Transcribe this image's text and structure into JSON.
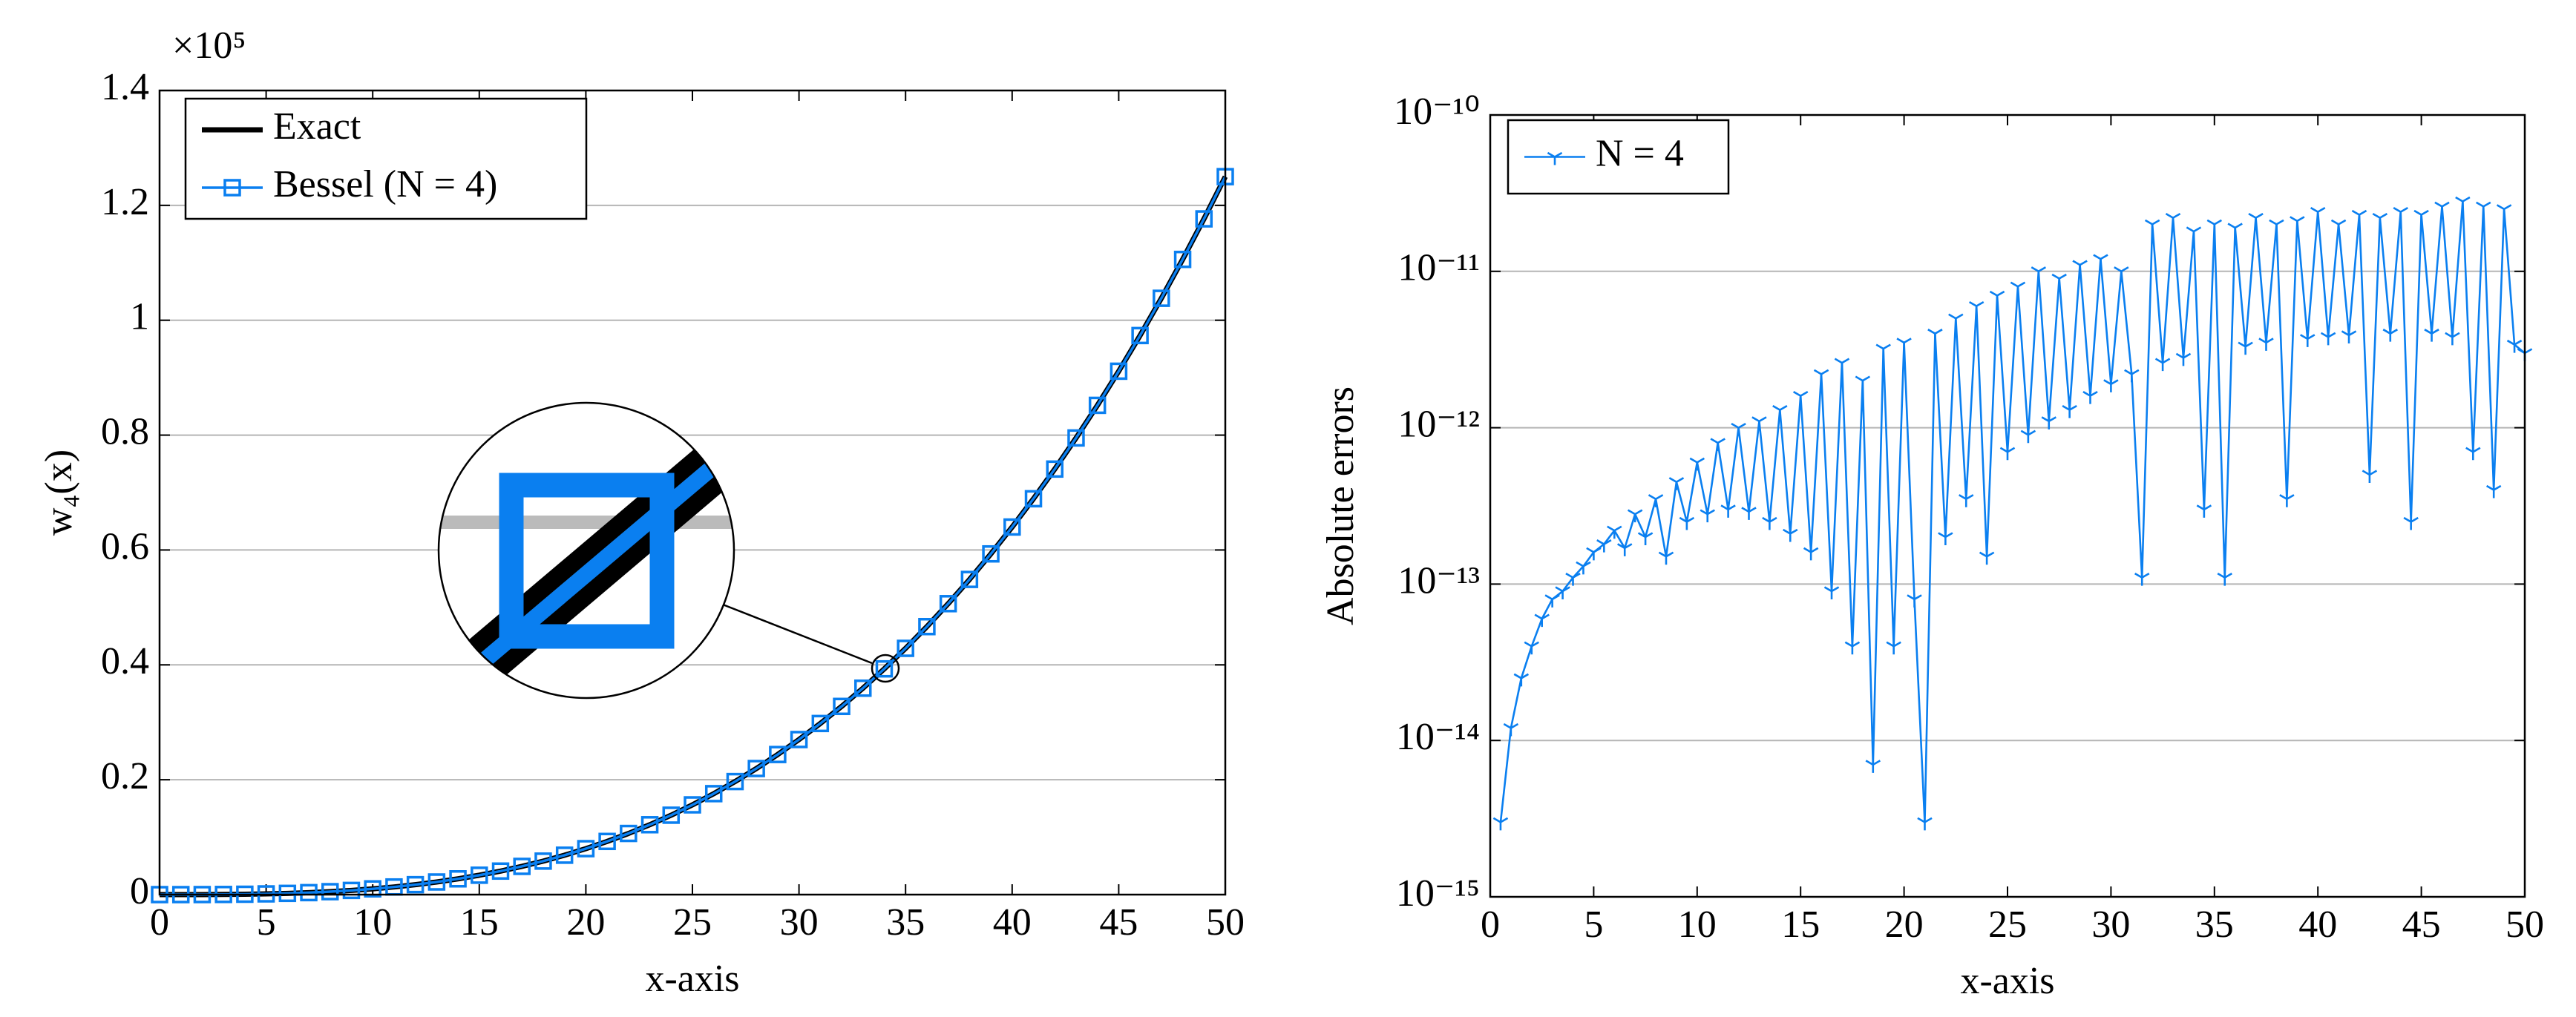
{
  "chart_data": [
    {
      "type": "line",
      "x": [
        0,
        1,
        2,
        3,
        4,
        5,
        6,
        7,
        8,
        9,
        10,
        11,
        12,
        13,
        14,
        15,
        16,
        17,
        18,
        19,
        20,
        21,
        22,
        23,
        24,
        25,
        26,
        27,
        28,
        29,
        30,
        31,
        32,
        33,
        34,
        35,
        36,
        37,
        38,
        39,
        40,
        41,
        42,
        43,
        44,
        45,
        46,
        47,
        48,
        49,
        50
      ],
      "series": [
        {
          "name": "Exact",
          "color": "#000000",
          "marker": "none",
          "values": [
            0,
            1e-05,
            8e-05,
            0.00027,
            0.00064,
            0.00125,
            0.00216,
            0.00343,
            0.00512,
            0.00729,
            0.01,
            0.01331,
            0.01728,
            0.02197,
            0.02744,
            0.03375,
            0.04096,
            0.04913,
            0.05832,
            0.06859,
            0.08,
            0.09261,
            0.10648,
            0.12167,
            0.13824,
            0.15625,
            0.17576,
            0.19683,
            0.21952,
            0.24389,
            0.27,
            0.29791,
            0.32768,
            0.35937,
            0.39304,
            0.42875,
            0.46656,
            0.50653,
            0.54872,
            0.59319,
            0.64,
            0.68921,
            0.74088,
            0.79507,
            0.85184,
            0.91125,
            0.97336,
            1.03823,
            1.10592,
            1.17649,
            1.25
          ]
        },
        {
          "name": "Bessel (N = 4)",
          "color": "#0a7ff0",
          "marker": "square",
          "values": [
            0,
            1e-05,
            8e-05,
            0.00027,
            0.00064,
            0.00125,
            0.00216,
            0.00343,
            0.00512,
            0.00729,
            0.01,
            0.01331,
            0.01728,
            0.02197,
            0.02744,
            0.03375,
            0.04096,
            0.04913,
            0.05832,
            0.06859,
            0.08,
            0.09261,
            0.10648,
            0.12167,
            0.13824,
            0.15625,
            0.17576,
            0.19683,
            0.21952,
            0.24389,
            0.27,
            0.29791,
            0.32768,
            0.35937,
            0.39304,
            0.42875,
            0.46656,
            0.50653,
            0.54872,
            0.59319,
            0.64,
            0.68921,
            0.74088,
            0.79507,
            0.85184,
            0.91125,
            0.97336,
            1.03823,
            1.10592,
            1.17649,
            1.25
          ]
        }
      ],
      "xlim": [
        0,
        50
      ],
      "ylim": [
        0,
        1.4
      ],
      "xticks": [
        0,
        5,
        10,
        15,
        20,
        25,
        30,
        35,
        40,
        45,
        50
      ],
      "yticks": [
        0,
        0.2,
        0.4,
        0.6,
        0.8,
        1,
        1.2,
        1.4
      ],
      "xlabel": "x-axis",
      "ylabel": "w₄(x)",
      "y_multiplier": "×10⁵",
      "grid": true,
      "log_y": false,
      "legend": "upper left"
    },
    {
      "type": "line",
      "x": [
        0.5,
        1,
        1.5,
        2,
        2.5,
        3,
        3.5,
        4,
        4.5,
        5,
        5.5,
        6,
        6.5,
        7,
        7.5,
        8,
        8.5,
        9,
        9.5,
        10,
        10.5,
        11,
        11.5,
        12,
        12.5,
        13,
        13.5,
        14,
        14.5,
        15,
        15.5,
        16,
        16.5,
        17,
        17.5,
        18,
        18.5,
        19,
        19.5,
        20,
        20.5,
        21,
        21.5,
        22,
        22.5,
        23,
        23.5,
        24,
        24.5,
        25,
        25.5,
        26,
        26.5,
        27,
        27.5,
        28,
        28.5,
        29,
        29.5,
        30,
        30.5,
        31,
        31.5,
        32,
        32.5,
        33,
        33.5,
        34,
        34.5,
        35,
        35.5,
        36,
        36.5,
        37,
        37.5,
        38,
        38.5,
        39,
        39.5,
        40,
        40.5,
        41,
        41.5,
        42,
        42.5,
        43,
        43.5,
        44,
        44.5,
        45,
        45.5,
        46,
        46.5,
        47,
        47.5,
        48,
        48.5,
        49,
        49.5,
        50
      ],
      "series": [
        {
          "name": "N = 4",
          "color": "#0a7ff0",
          "marker": "tri",
          "values": [
            3e-15,
            1.2e-14,
            2.5e-14,
            4e-14,
            6e-14,
            8e-14,
            9e-14,
            1.1e-13,
            1.3e-13,
            1.6e-13,
            1.8e-13,
            2.2e-13,
            1.7e-13,
            2.8e-13,
            2e-13,
            3.5e-13,
            1.5e-13,
            4.5e-13,
            2.5e-13,
            6e-13,
            2.8e-13,
            8e-13,
            3e-13,
            1e-12,
            2.9e-13,
            1.1e-12,
            2.5e-13,
            1.3e-12,
            2.1e-13,
            1.6e-12,
            1.6e-13,
            2.2e-12,
            9e-14,
            2.6e-12,
            4e-14,
            2e-12,
            7e-15,
            3.2e-12,
            4e-14,
            3.5e-12,
            8e-14,
            3e-15,
            4e-12,
            2e-13,
            5e-12,
            3.5e-13,
            6e-12,
            1.5e-13,
            7e-12,
            7e-13,
            8e-12,
            9e-13,
            1e-11,
            1.1e-12,
            9e-12,
            1.3e-12,
            1.1e-11,
            1.6e-12,
            1.2e-11,
            1.9e-12,
            1e-11,
            2.2e-12,
            1.1e-13,
            2e-11,
            2.6e-12,
            2.2e-11,
            2.8e-12,
            1.8e-11,
            3e-13,
            2e-11,
            1.1e-13,
            1.9e-11,
            3.3e-12,
            2.2e-11,
            3.5e-12,
            2e-11,
            3.5e-13,
            2.1e-11,
            3.7e-12,
            2.4e-11,
            3.8e-12,
            2e-11,
            3.9e-12,
            2.3e-11,
            5e-13,
            2.2e-11,
            4e-12,
            2.4e-11,
            2.5e-13,
            2.3e-11,
            4e-12,
            2.6e-11,
            3.8e-12,
            2.8e-11,
            7e-13,
            2.6e-11,
            4e-13,
            2.5e-11,
            3.4e-12,
            3e-12
          ]
        }
      ],
      "xlim": [
        0,
        50
      ],
      "ylim": [
        1e-15,
        1e-10
      ],
      "xticks": [
        0,
        5,
        10,
        15,
        20,
        25,
        30,
        35,
        40,
        45,
        50
      ],
      "yticks": [
        {
          "value": 1e-15,
          "label": "10⁻¹⁵"
        },
        {
          "value": 1e-14,
          "label": "10⁻¹⁴"
        },
        {
          "value": 1e-13,
          "label": "10⁻¹³"
        },
        {
          "value": 1e-12,
          "label": "10⁻¹²"
        },
        {
          "value": 1e-11,
          "label": "10⁻¹¹"
        },
        {
          "value": 1e-10,
          "label": "10⁻¹⁰"
        }
      ],
      "xlabel": "x-axis",
      "ylabel": "Absolute errors",
      "grid": true,
      "log_y": true,
      "legend": "upper left"
    }
  ]
}
